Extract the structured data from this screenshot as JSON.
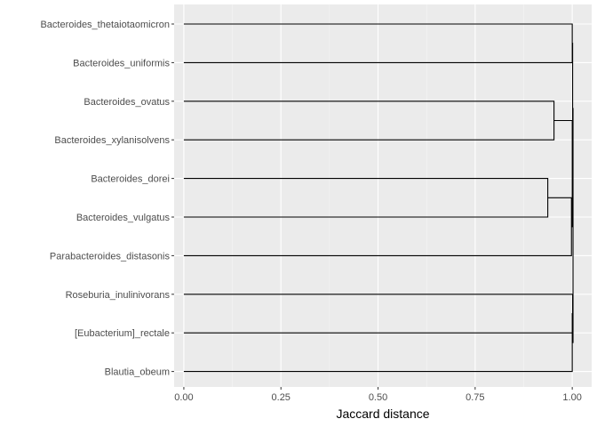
{
  "chart_data": {
    "type": "dendrogram",
    "orientation": "horizontal",
    "xlabel": "Jaccard distance",
    "ylabel": "",
    "xlim": [
      -0.025,
      1.05
    ],
    "x_ticks": [
      0.0,
      0.25,
      0.5,
      0.75,
      1.0
    ],
    "x_tick_labels": [
      "0.00",
      "0.25",
      "0.50",
      "0.75",
      "1.00"
    ],
    "grid": true,
    "leaves": [
      "Bacteroides_thetaiotaomicron",
      "Bacteroides_uniformis",
      "Bacteroides_ovatus",
      "Bacteroides_xylanisolvens",
      "Bacteroides_dorei",
      "Bacteroides_vulgatus",
      "Parabacteroides_distasonis",
      "Roseburia_inulinivorans",
      "[Eubacterium]_rectale",
      "Blautia_obeum"
    ],
    "merges": [
      {
        "a": "L0",
        "b": "L1",
        "height": 1.0
      },
      {
        "a": "L2",
        "b": "L3",
        "height": 0.953
      },
      {
        "a": "L4",
        "b": "L5",
        "height": 0.937
      },
      {
        "a": "M2",
        "b": "L6",
        "height": 0.998
      },
      {
        "a": "M1",
        "b": "M3",
        "height": 1.0
      },
      {
        "a": "M0",
        "b": "M4",
        "height": 1.001
      },
      {
        "a": "L7",
        "b": "L8",
        "height": 1.001
      },
      {
        "a": "M6",
        "b": "L9",
        "height": 1.0
      },
      {
        "a": "M5",
        "b": "M7",
        "height": 1.002
      }
    ]
  },
  "colors": {
    "panel_background": "#ebebeb",
    "grid_major": "#ffffff",
    "grid_minor": "#f5f5f5",
    "line": "#000000",
    "tick_text": "#4d4d4d",
    "tick_mark": "#333333"
  }
}
